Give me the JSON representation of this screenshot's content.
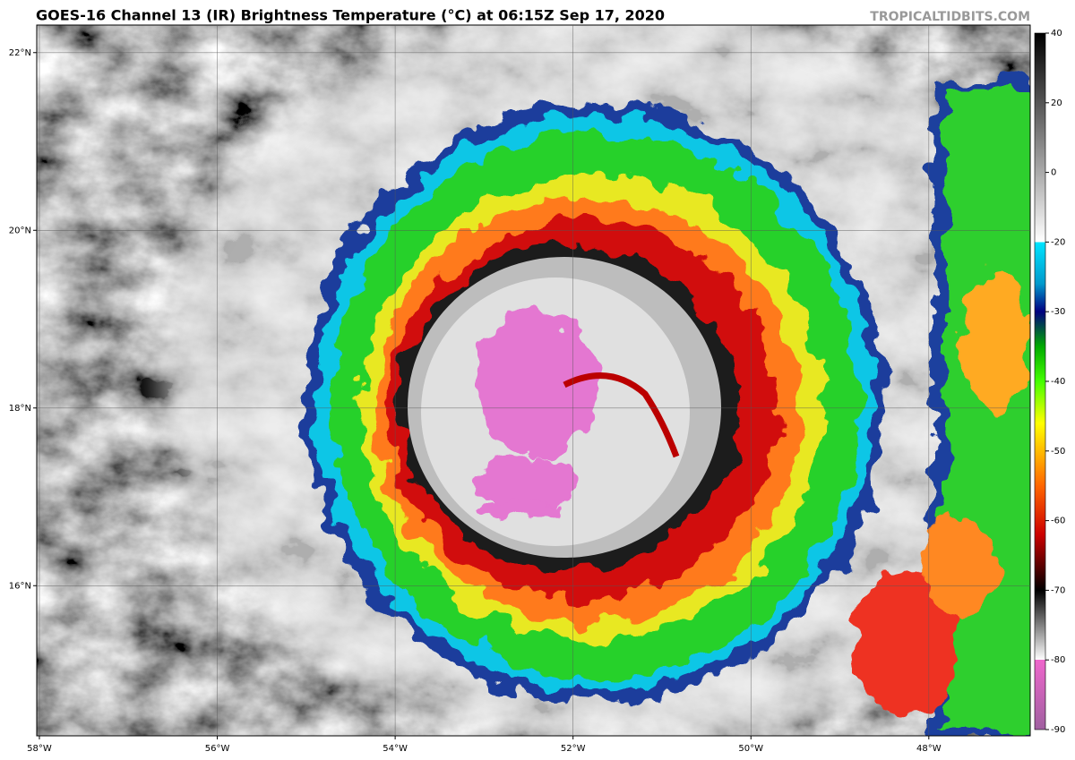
{
  "header": {
    "title": "GOES-16 Channel 13 (IR) Brightness Temperature (°C) at 06:15Z Sep 17, 2020",
    "credit": "TROPICALTIDBITS.COM"
  },
  "map": {
    "lon_range": [
      -58.03,
      -46.86
    ],
    "lat_range": [
      14.31,
      22.31
    ],
    "lon_ticks": [
      {
        "value": -58,
        "label": "58°W"
      },
      {
        "value": -56,
        "label": "56°W"
      },
      {
        "value": -54,
        "label": "54°W"
      },
      {
        "value": -52,
        "label": "52°W"
      },
      {
        "value": -50,
        "label": "50°W"
      },
      {
        "value": -48,
        "label": "48°W"
      }
    ],
    "lat_ticks": [
      {
        "value": 22,
        "label": "22°N"
      },
      {
        "value": 20,
        "label": "20°N"
      },
      {
        "value": 18,
        "label": "18°N"
      },
      {
        "value": 16,
        "label": "16°N"
      }
    ]
  },
  "colorbar": {
    "ticks": [
      40,
      20,
      0,
      -20,
      -30,
      -40,
      -50,
      -60,
      -70,
      -80,
      -90
    ]
  }
}
